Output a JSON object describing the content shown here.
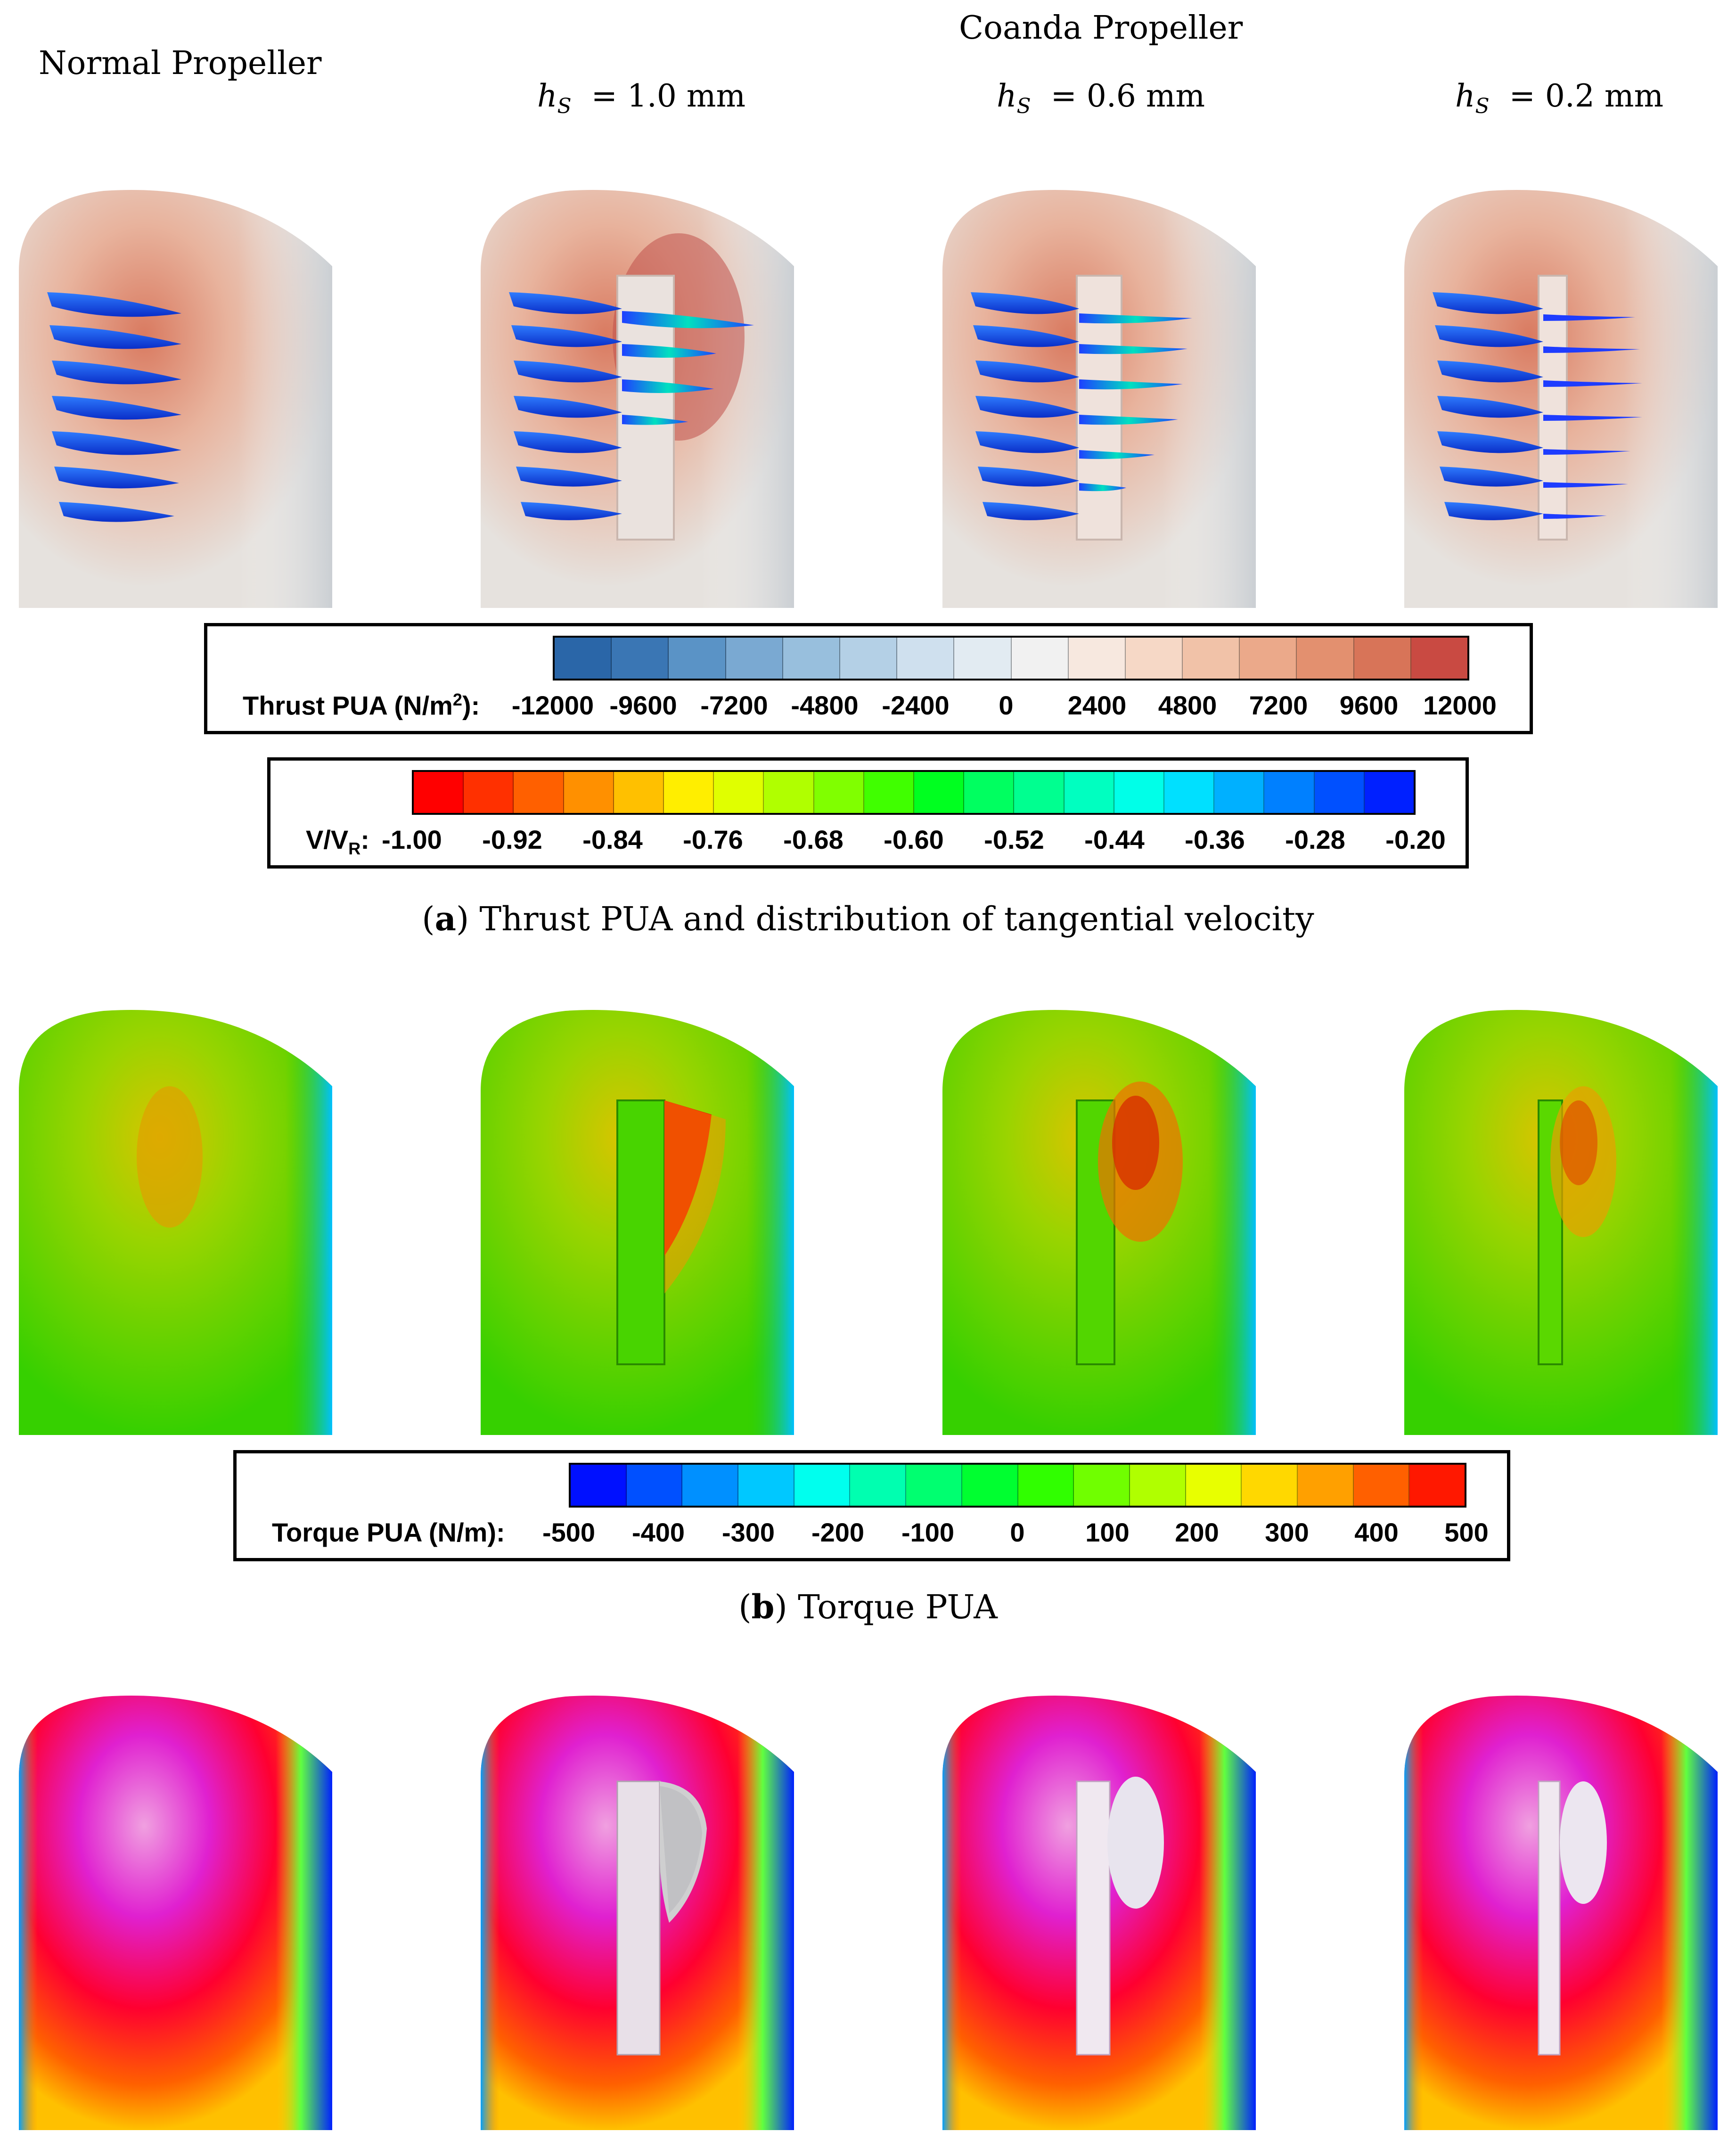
{
  "headers": {
    "normal": "Normal Propeller",
    "coanda": "Coanda Propeller",
    "hs_symbol": "h",
    "hs_sub": "S",
    "hs_values": [
      "= 1.0 mm",
      "= 0.6 mm",
      "= 0.2 mm"
    ]
  },
  "legend_thrust": {
    "label": "Thrust PUA (N/m",
    "label_sup": "2",
    "label_end": "):",
    "ticks": [
      "-12000",
      "-9600",
      "-7200",
      "-4800",
      "-2400",
      "0",
      "2400",
      "4800",
      "7200",
      "9600",
      "12000"
    ]
  },
  "legend_velocity": {
    "label": "V/V",
    "label_sub": "R",
    "label_end": ":",
    "ticks": [
      "-1.00",
      "-0.92",
      "-0.84",
      "-0.76",
      "-0.68",
      "-0.60",
      "-0.52",
      "-0.44",
      "-0.36",
      "-0.28",
      "-0.20"
    ]
  },
  "legend_torque": {
    "label": "Torque PUA (N/m):",
    "ticks": [
      "-500",
      "-400",
      "-300",
      "-200",
      "-100",
      "0",
      "100",
      "200",
      "300",
      "400",
      "500"
    ]
  },
  "captions": {
    "a_letter": "a",
    "a_text": " Thrust PUA and distribution of tangential velocity",
    "b_letter": "b",
    "b_text": " Torque PUA"
  },
  "colors": {
    "thrust_scale": [
      "#2a66a8",
      "#4a86bf",
      "#7aa9d2",
      "#a8c8e2",
      "#d2e3ef",
      "#f2f2f2",
      "#f7dccd",
      "#f0b79b",
      "#e48a6b",
      "#d45a4a",
      "#b4222c"
    ],
    "velocity_scale": [
      "#ff0000",
      "#ff5a00",
      "#ffa500",
      "#ffe000",
      "#c8ff00",
      "#66ff00",
      "#00ff5a",
      "#00ffb4",
      "#00e0ff",
      "#0090ff",
      "#0020ff"
    ],
    "torque_scale": [
      "#0000ff",
      "#0070ff",
      "#00c8ff",
      "#00ffc8",
      "#00ff70",
      "#20ff00",
      "#a0ff00",
      "#ffff00",
      "#ffb000",
      "#ff5000",
      "#ff0000"
    ]
  }
}
